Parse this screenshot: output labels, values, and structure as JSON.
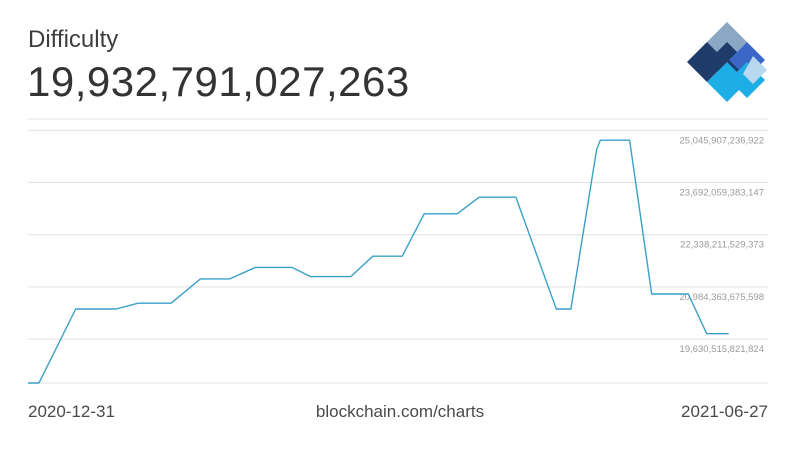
{
  "header": {
    "title": "Difficulty",
    "value": "19,932,791,027,263"
  },
  "logo": {
    "icon": "blockchain-logo-icon",
    "colors": [
      "#1f3b69",
      "#3a67c8",
      "#1eaee6",
      "#8aa8c4",
      "#b8d8ef"
    ]
  },
  "footer": {
    "start_date": "2020-12-31",
    "source": "blockchain.com/charts",
    "end_date": "2021-06-27"
  },
  "chart_data": {
    "type": "line",
    "title": "Difficulty",
    "line_color": "#3aa0c8",
    "grid": true,
    "ylim": [
      18750000000000,
      25600000000000
    ],
    "y_ticks": [
      {
        "value": 25045907236922,
        "label": "25,045,907,236,922"
      },
      {
        "value": 23692059383147,
        "label": "23,692,059,383,147"
      },
      {
        "value": 22338211529373,
        "label": "22,338,211,529,373"
      },
      {
        "value": 20984363675598,
        "label": "20,984,363,675,598"
      },
      {
        "value": 19630515821824,
        "label": "19,630,515,821,824"
      }
    ],
    "x_start": "2020-12-31",
    "x_end": "2021-06-27",
    "series": [
      {
        "points": [
          [
            "2020-12-31",
            18600000000000
          ],
          [
            "2021-01-03",
            18600000000000
          ],
          [
            "2021-01-13",
            20670000000000
          ],
          [
            "2021-01-24",
            20670000000000
          ],
          [
            "2021-01-30",
            20820000000000
          ],
          [
            "2021-02-08",
            20820000000000
          ],
          [
            "2021-02-16",
            21450000000000
          ],
          [
            "2021-02-24",
            21450000000000
          ],
          [
            "2021-03-03",
            21750000000000
          ],
          [
            "2021-03-13",
            21750000000000
          ],
          [
            "2021-03-18",
            21510000000000
          ],
          [
            "2021-03-29",
            21510000000000
          ],
          [
            "2021-04-04",
            22040000000000
          ],
          [
            "2021-04-12",
            22040000000000
          ],
          [
            "2021-04-18",
            23140000000000
          ],
          [
            "2021-04-27",
            23140000000000
          ],
          [
            "2021-05-03",
            23570000000000
          ],
          [
            "2021-05-13",
            23570000000000
          ],
          [
            "2021-05-24",
            20670000000000
          ],
          [
            "2021-05-28",
            20670000000000
          ],
          [
            "2021-06-04",
            24800000000000
          ],
          [
            "2021-06-05",
            25050000000000
          ],
          [
            "2021-06-13",
            25050000000000
          ],
          [
            "2021-06-19",
            21060000000000
          ],
          [
            "2021-06-29",
            21060000000000
          ],
          [
            "2021-07-04",
            20030000000000
          ],
          [
            "2021-07-10",
            20030000000000
          ]
        ]
      }
    ]
  }
}
